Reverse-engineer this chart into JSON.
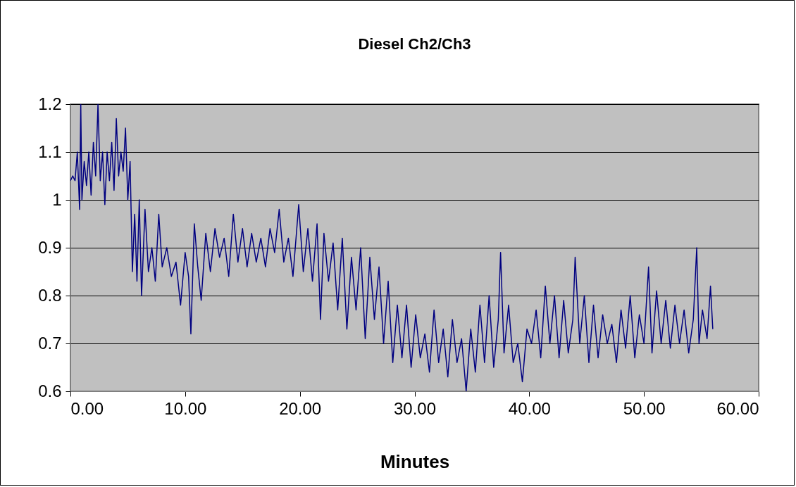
{
  "chart_data": {
    "type": "line",
    "title": "Diesel Ch2/Ch3",
    "xlabel": "Minutes",
    "xlim": [
      0,
      60
    ],
    "xticks": [
      {
        "value": 0,
        "label": "0.00"
      },
      {
        "value": 10,
        "label": "10.00"
      },
      {
        "value": 20,
        "label": "20.00"
      },
      {
        "value": 30,
        "label": "30.00"
      },
      {
        "value": 40,
        "label": "40.00"
      },
      {
        "value": 50,
        "label": "50.00"
      },
      {
        "value": 60,
        "label": "60.00"
      }
    ],
    "ylim": [
      0.6,
      1.2
    ],
    "yticks": [
      0.6,
      0.7,
      0.8,
      0.9,
      1,
      1.1,
      1.2
    ],
    "grid": "y",
    "marker": "none",
    "line_style": "solid",
    "series": [
      {
        "color": "#000080",
        "x": [
          0,
          0.2,
          0.4,
          0.6,
          0.8,
          0.9,
          1.0,
          1.2,
          1.4,
          1.6,
          1.8,
          2.0,
          2.2,
          2.4,
          2.6,
          2.8,
          3.0,
          3.2,
          3.4,
          3.6,
          3.8,
          4.0,
          4.2,
          4.4,
          4.6,
          4.8,
          5.0,
          5.2,
          5.4,
          5.6,
          5.8,
          6.0,
          6.2,
          6.5,
          6.8,
          7.1,
          7.4,
          7.7,
          8.0,
          8.4,
          8.8,
          9.2,
          9.6,
          10.0,
          10.3,
          10.5,
          10.8,
          11.1,
          11.4,
          11.8,
          12.2,
          12.6,
          13.0,
          13.4,
          13.8,
          14.2,
          14.6,
          15.0,
          15.4,
          15.8,
          16.2,
          16.6,
          17.0,
          17.4,
          17.8,
          18.2,
          18.6,
          19.0,
          19.4,
          19.9,
          20.3,
          20.7,
          21.1,
          21.5,
          21.8,
          22.1,
          22.5,
          22.9,
          23.3,
          23.7,
          24.1,
          24.5,
          24.9,
          25.3,
          25.7,
          26.1,
          26.5,
          26.9,
          27.3,
          27.7,
          28.1,
          28.5,
          28.9,
          29.3,
          29.7,
          30.1,
          30.5,
          30.9,
          31.3,
          31.7,
          32.1,
          32.5,
          32.9,
          33.3,
          33.7,
          34.1,
          34.5,
          34.9,
          35.3,
          35.7,
          36.1,
          36.5,
          36.9,
          37.3,
          37.5,
          37.8,
          38.2,
          38.6,
          39.0,
          39.4,
          39.8,
          40.2,
          40.6,
          41.0,
          41.4,
          41.8,
          42.2,
          42.6,
          43.0,
          43.4,
          43.8,
          44.0,
          44.4,
          44.8,
          45.2,
          45.6,
          46.0,
          46.4,
          46.8,
          47.2,
          47.6,
          48.0,
          48.4,
          48.8,
          49.2,
          49.6,
          50.0,
          50.4,
          50.7,
          51.1,
          51.5,
          51.9,
          52.3,
          52.7,
          53.1,
          53.5,
          53.9,
          54.3,
          54.6,
          54.8,
          55.1,
          55.5,
          55.8,
          56.0
        ],
        "values": [
          1.04,
          1.05,
          1.04,
          1.1,
          0.98,
          1.2,
          1.0,
          1.08,
          1.03,
          1.1,
          1.01,
          1.12,
          1.05,
          1.2,
          1.04,
          1.1,
          0.99,
          1.1,
          1.04,
          1.12,
          1.02,
          1.17,
          1.05,
          1.1,
          1.06,
          1.15,
          1.0,
          1.08,
          0.85,
          0.97,
          0.83,
          1.0,
          0.8,
          0.98,
          0.85,
          0.9,
          0.83,
          0.97,
          0.86,
          0.9,
          0.84,
          0.87,
          0.78,
          0.89,
          0.84,
          0.72,
          0.95,
          0.86,
          0.79,
          0.93,
          0.85,
          0.94,
          0.88,
          0.92,
          0.84,
          0.97,
          0.87,
          0.94,
          0.86,
          0.93,
          0.87,
          0.92,
          0.86,
          0.94,
          0.89,
          0.98,
          0.87,
          0.92,
          0.84,
          0.99,
          0.85,
          0.94,
          0.83,
          0.95,
          0.75,
          0.93,
          0.83,
          0.91,
          0.77,
          0.92,
          0.73,
          0.88,
          0.77,
          0.9,
          0.71,
          0.88,
          0.75,
          0.86,
          0.7,
          0.83,
          0.66,
          0.78,
          0.67,
          0.78,
          0.65,
          0.76,
          0.67,
          0.72,
          0.64,
          0.77,
          0.66,
          0.73,
          0.63,
          0.75,
          0.66,
          0.71,
          0.6,
          0.73,
          0.64,
          0.78,
          0.66,
          0.8,
          0.65,
          0.75,
          0.89,
          0.68,
          0.78,
          0.66,
          0.7,
          0.62,
          0.73,
          0.7,
          0.77,
          0.67,
          0.82,
          0.7,
          0.8,
          0.67,
          0.79,
          0.68,
          0.75,
          0.88,
          0.7,
          0.8,
          0.66,
          0.78,
          0.67,
          0.76,
          0.7,
          0.74,
          0.66,
          0.77,
          0.69,
          0.8,
          0.67,
          0.76,
          0.7,
          0.86,
          0.68,
          0.81,
          0.7,
          0.79,
          0.69,
          0.78,
          0.7,
          0.77,
          0.68,
          0.75,
          0.9,
          0.7,
          0.77,
          0.71,
          0.82,
          0.73
        ]
      }
    ]
  }
}
